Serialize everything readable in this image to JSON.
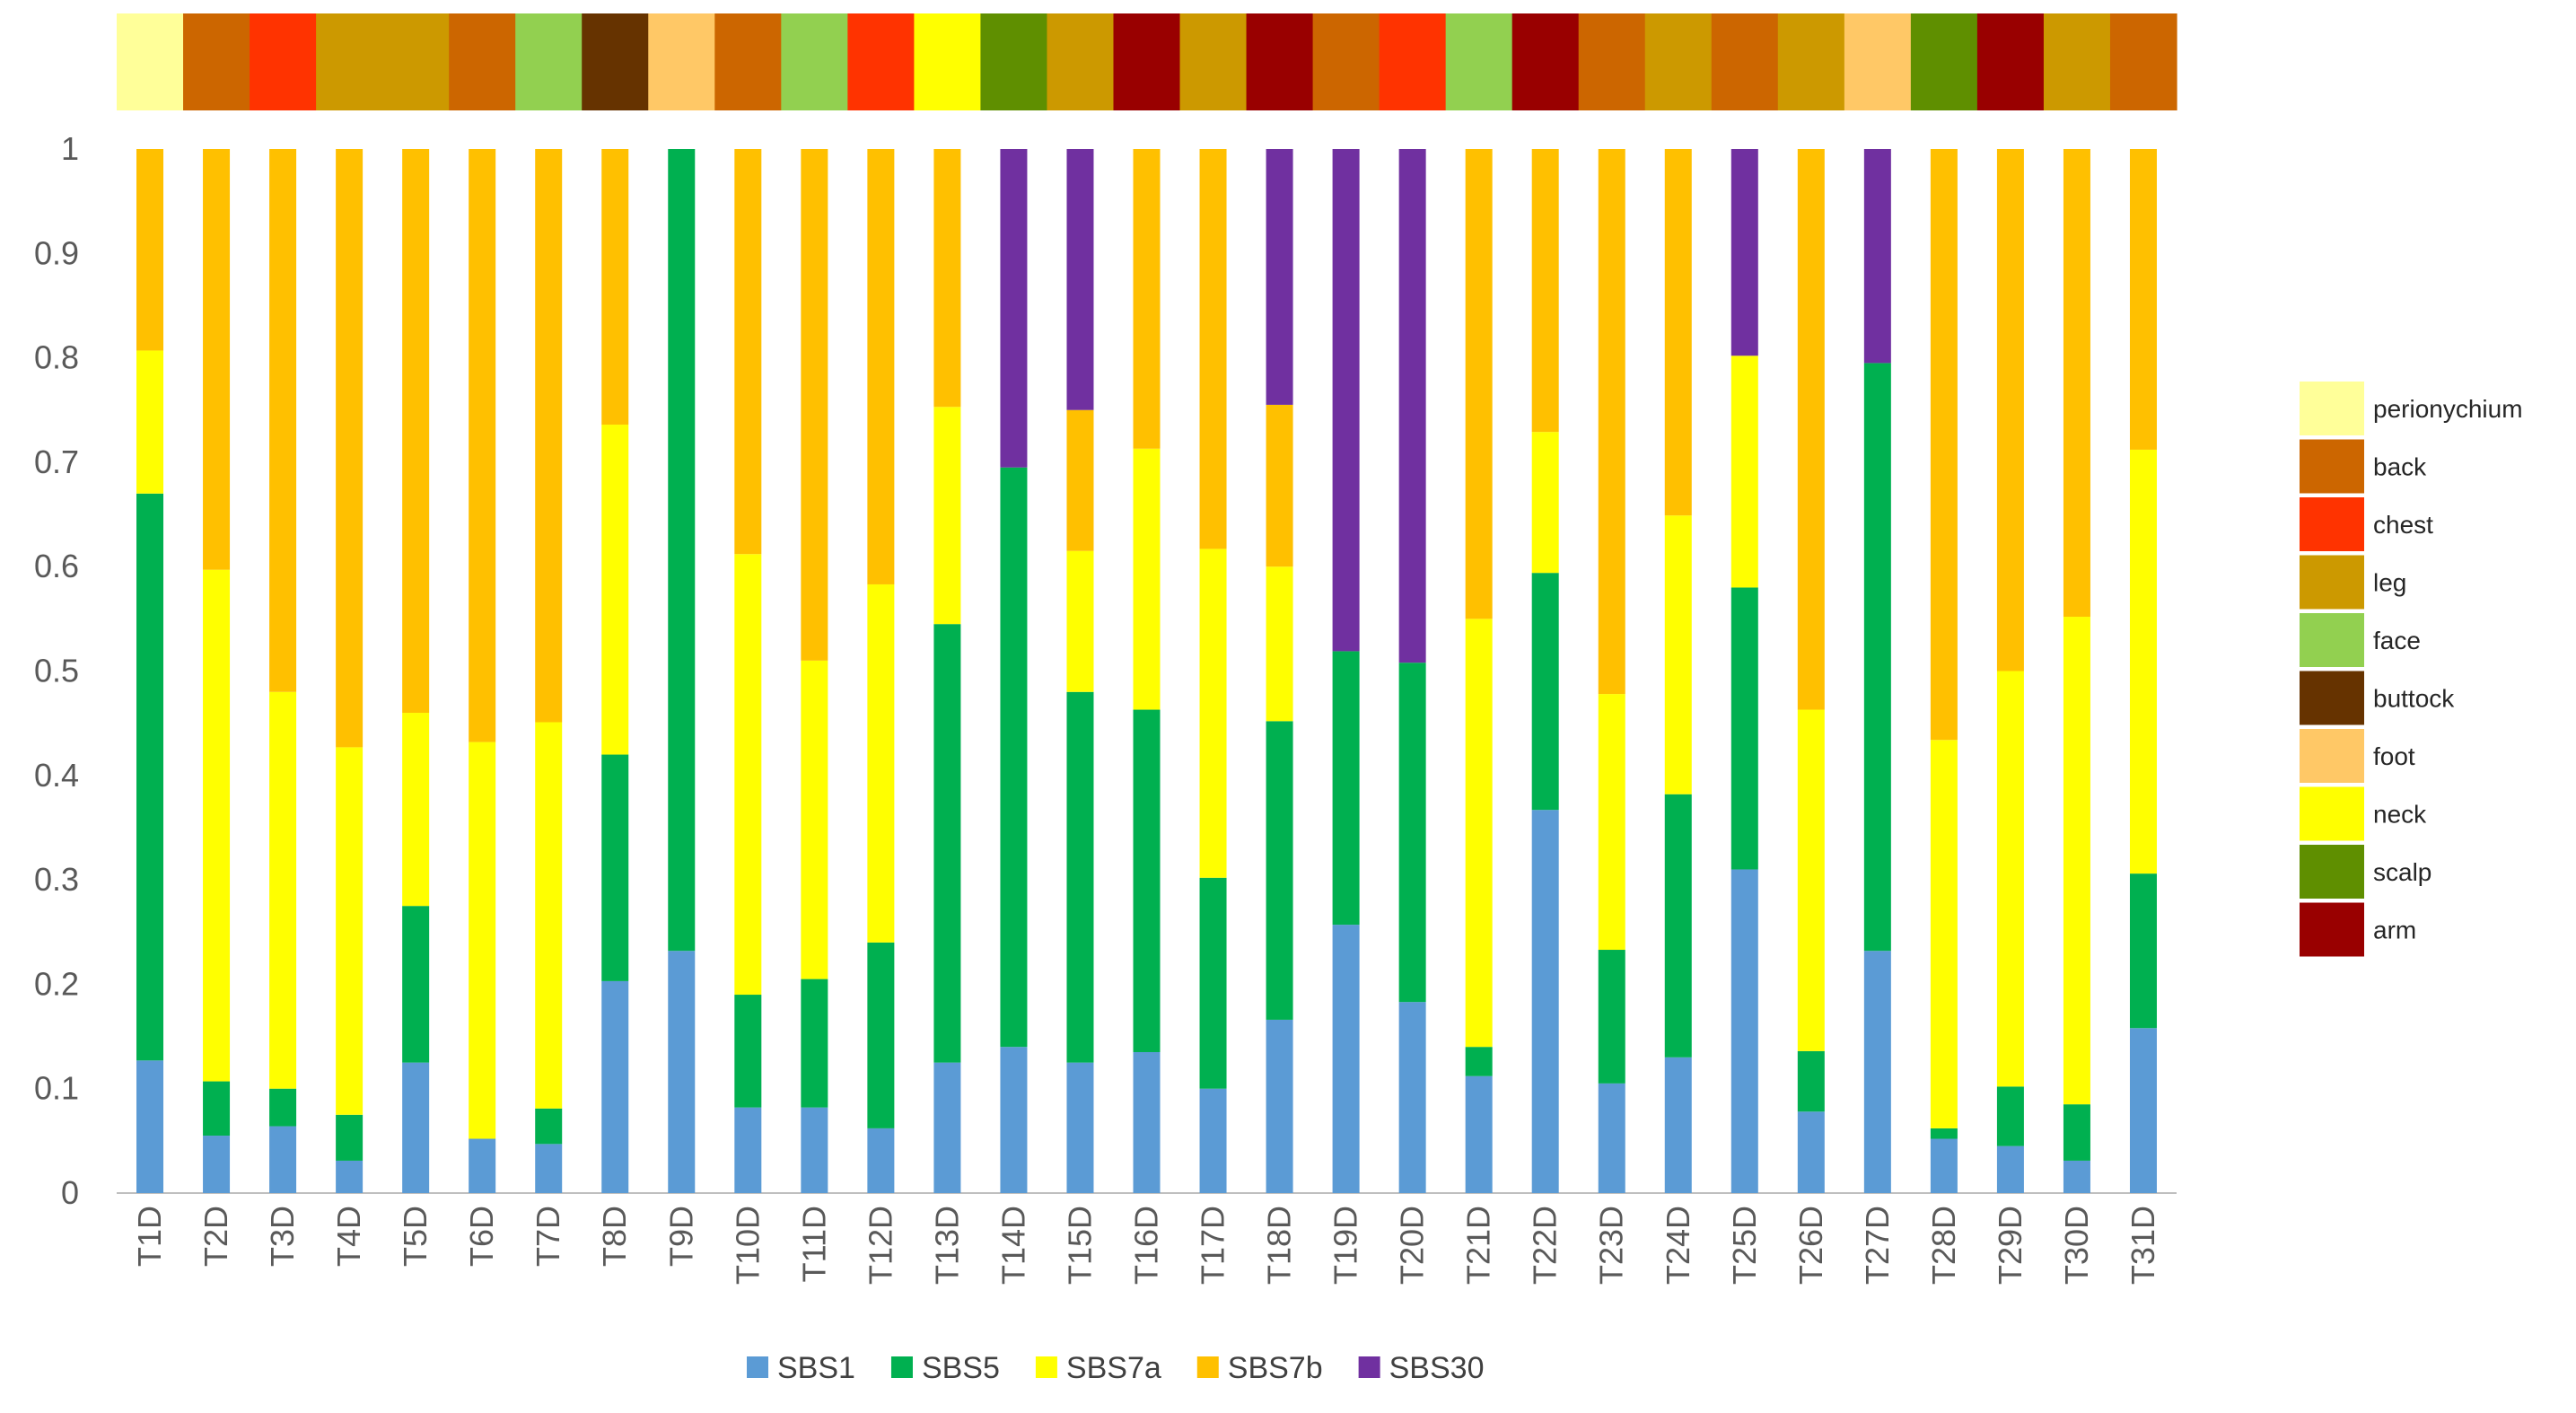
{
  "chart_data": {
    "type": "bar",
    "stacked": true,
    "title": "",
    "xlabel": "",
    "ylabel": "",
    "ylim": [
      0,
      1
    ],
    "yticks": [
      "0",
      "0.1",
      "0.2",
      "0.3",
      "0.4",
      "0.5",
      "0.6",
      "0.7",
      "0.8",
      "0.9",
      "1"
    ],
    "categories": [
      "T1D",
      "T2D",
      "T3D",
      "T4D",
      "T5D",
      "T6D",
      "T7D",
      "T8D",
      "T9D",
      "T10D",
      "T11D",
      "T12D",
      "T13D",
      "T14D",
      "T15D",
      "T16D",
      "T17D",
      "T18D",
      "T19D",
      "T20D",
      "T21D",
      "T22D",
      "T23D",
      "T24D",
      "T25D",
      "T26D",
      "T27D",
      "T28D",
      "T29D",
      "T30D",
      "T31D"
    ],
    "series": [
      {
        "name": "SBS1",
        "color": "#5B9BD5",
        "values": [
          0.127,
          0.055,
          0.064,
          0.031,
          0.125,
          0.052,
          0.047,
          0.203,
          0.232,
          0.082,
          0.082,
          0.062,
          0.125,
          0.14,
          0.125,
          0.135,
          0.1,
          0.166,
          0.257,
          0.183,
          0.112,
          0.367,
          0.105,
          0.13,
          0.31,
          0.078,
          0.232,
          0.052,
          0.045,
          0.031,
          0.158
        ]
      },
      {
        "name": "SBS5",
        "color": "#00B050",
        "values": [
          0.543,
          0.052,
          0.036,
          0.044,
          0.15,
          0.0,
          0.034,
          0.217,
          0.768,
          0.108,
          0.123,
          0.178,
          0.42,
          0.555,
          0.355,
          0.328,
          0.202,
          0.286,
          0.262,
          0.325,
          0.028,
          0.227,
          0.128,
          0.252,
          0.27,
          0.058,
          0.563,
          0.01,
          0.057,
          0.054,
          0.148
        ]
      },
      {
        "name": "SBS7a",
        "color": "#FFFF00",
        "values": [
          0.137,
          0.49,
          0.38,
          0.352,
          0.185,
          0.38,
          0.37,
          0.316,
          0.0,
          0.422,
          0.305,
          0.343,
          0.208,
          0.0,
          0.135,
          0.25,
          0.315,
          0.148,
          0.0,
          0.0,
          0.41,
          0.135,
          0.245,
          0.267,
          0.222,
          0.327,
          0.0,
          0.372,
          0.398,
          0.467,
          0.406
        ]
      },
      {
        "name": "SBS7b",
        "color": "#FFC000",
        "values": [
          0.193,
          0.403,
          0.52,
          0.573,
          0.54,
          0.568,
          0.549,
          0.264,
          0.0,
          0.388,
          0.49,
          0.417,
          0.247,
          0.0,
          0.135,
          0.287,
          0.383,
          0.155,
          0.0,
          0.0,
          0.45,
          0.271,
          0.522,
          0.351,
          0.0,
          0.537,
          0.0,
          0.566,
          0.5,
          0.448,
          0.288
        ]
      },
      {
        "name": "SBS30",
        "color": "#7030A0",
        "values": [
          0,
          0,
          0,
          0,
          0,
          0,
          0,
          0,
          0,
          0,
          0,
          0,
          0,
          0.305,
          0.25,
          0,
          0,
          0.245,
          0.481,
          0.492,
          0,
          0,
          0,
          0,
          0.198,
          0,
          0.205,
          0,
          0,
          0,
          0
        ]
      }
    ],
    "tissue_colors": {
      "perionychium": "#FFFF99",
      "back": "#CC6600",
      "chest": "#FF3300",
      "leg": "#CC9900",
      "face": "#92D050",
      "buttock": "#663300",
      "foot": "#FFC866",
      "neck": "#FFFF00",
      "scalp": "#5F8F00",
      "arm": "#990000"
    },
    "tissue_legend": [
      "perionychium",
      "back",
      "chest",
      "leg",
      "face",
      "buttock",
      "foot",
      "neck",
      "scalp",
      "arm"
    ],
    "tissue_strip": [
      "perionychium",
      "back",
      "chest",
      "leg",
      "leg",
      "back",
      "face",
      "buttock",
      "foot",
      "back",
      "face",
      "chest",
      "neck",
      "scalp",
      "leg",
      "arm",
      "leg",
      "arm",
      "back",
      "chest",
      "face",
      "arm",
      "back",
      "leg",
      "back",
      "leg",
      "foot",
      "scalp",
      "arm",
      "leg",
      "back"
    ],
    "legend_position": "bottom"
  }
}
